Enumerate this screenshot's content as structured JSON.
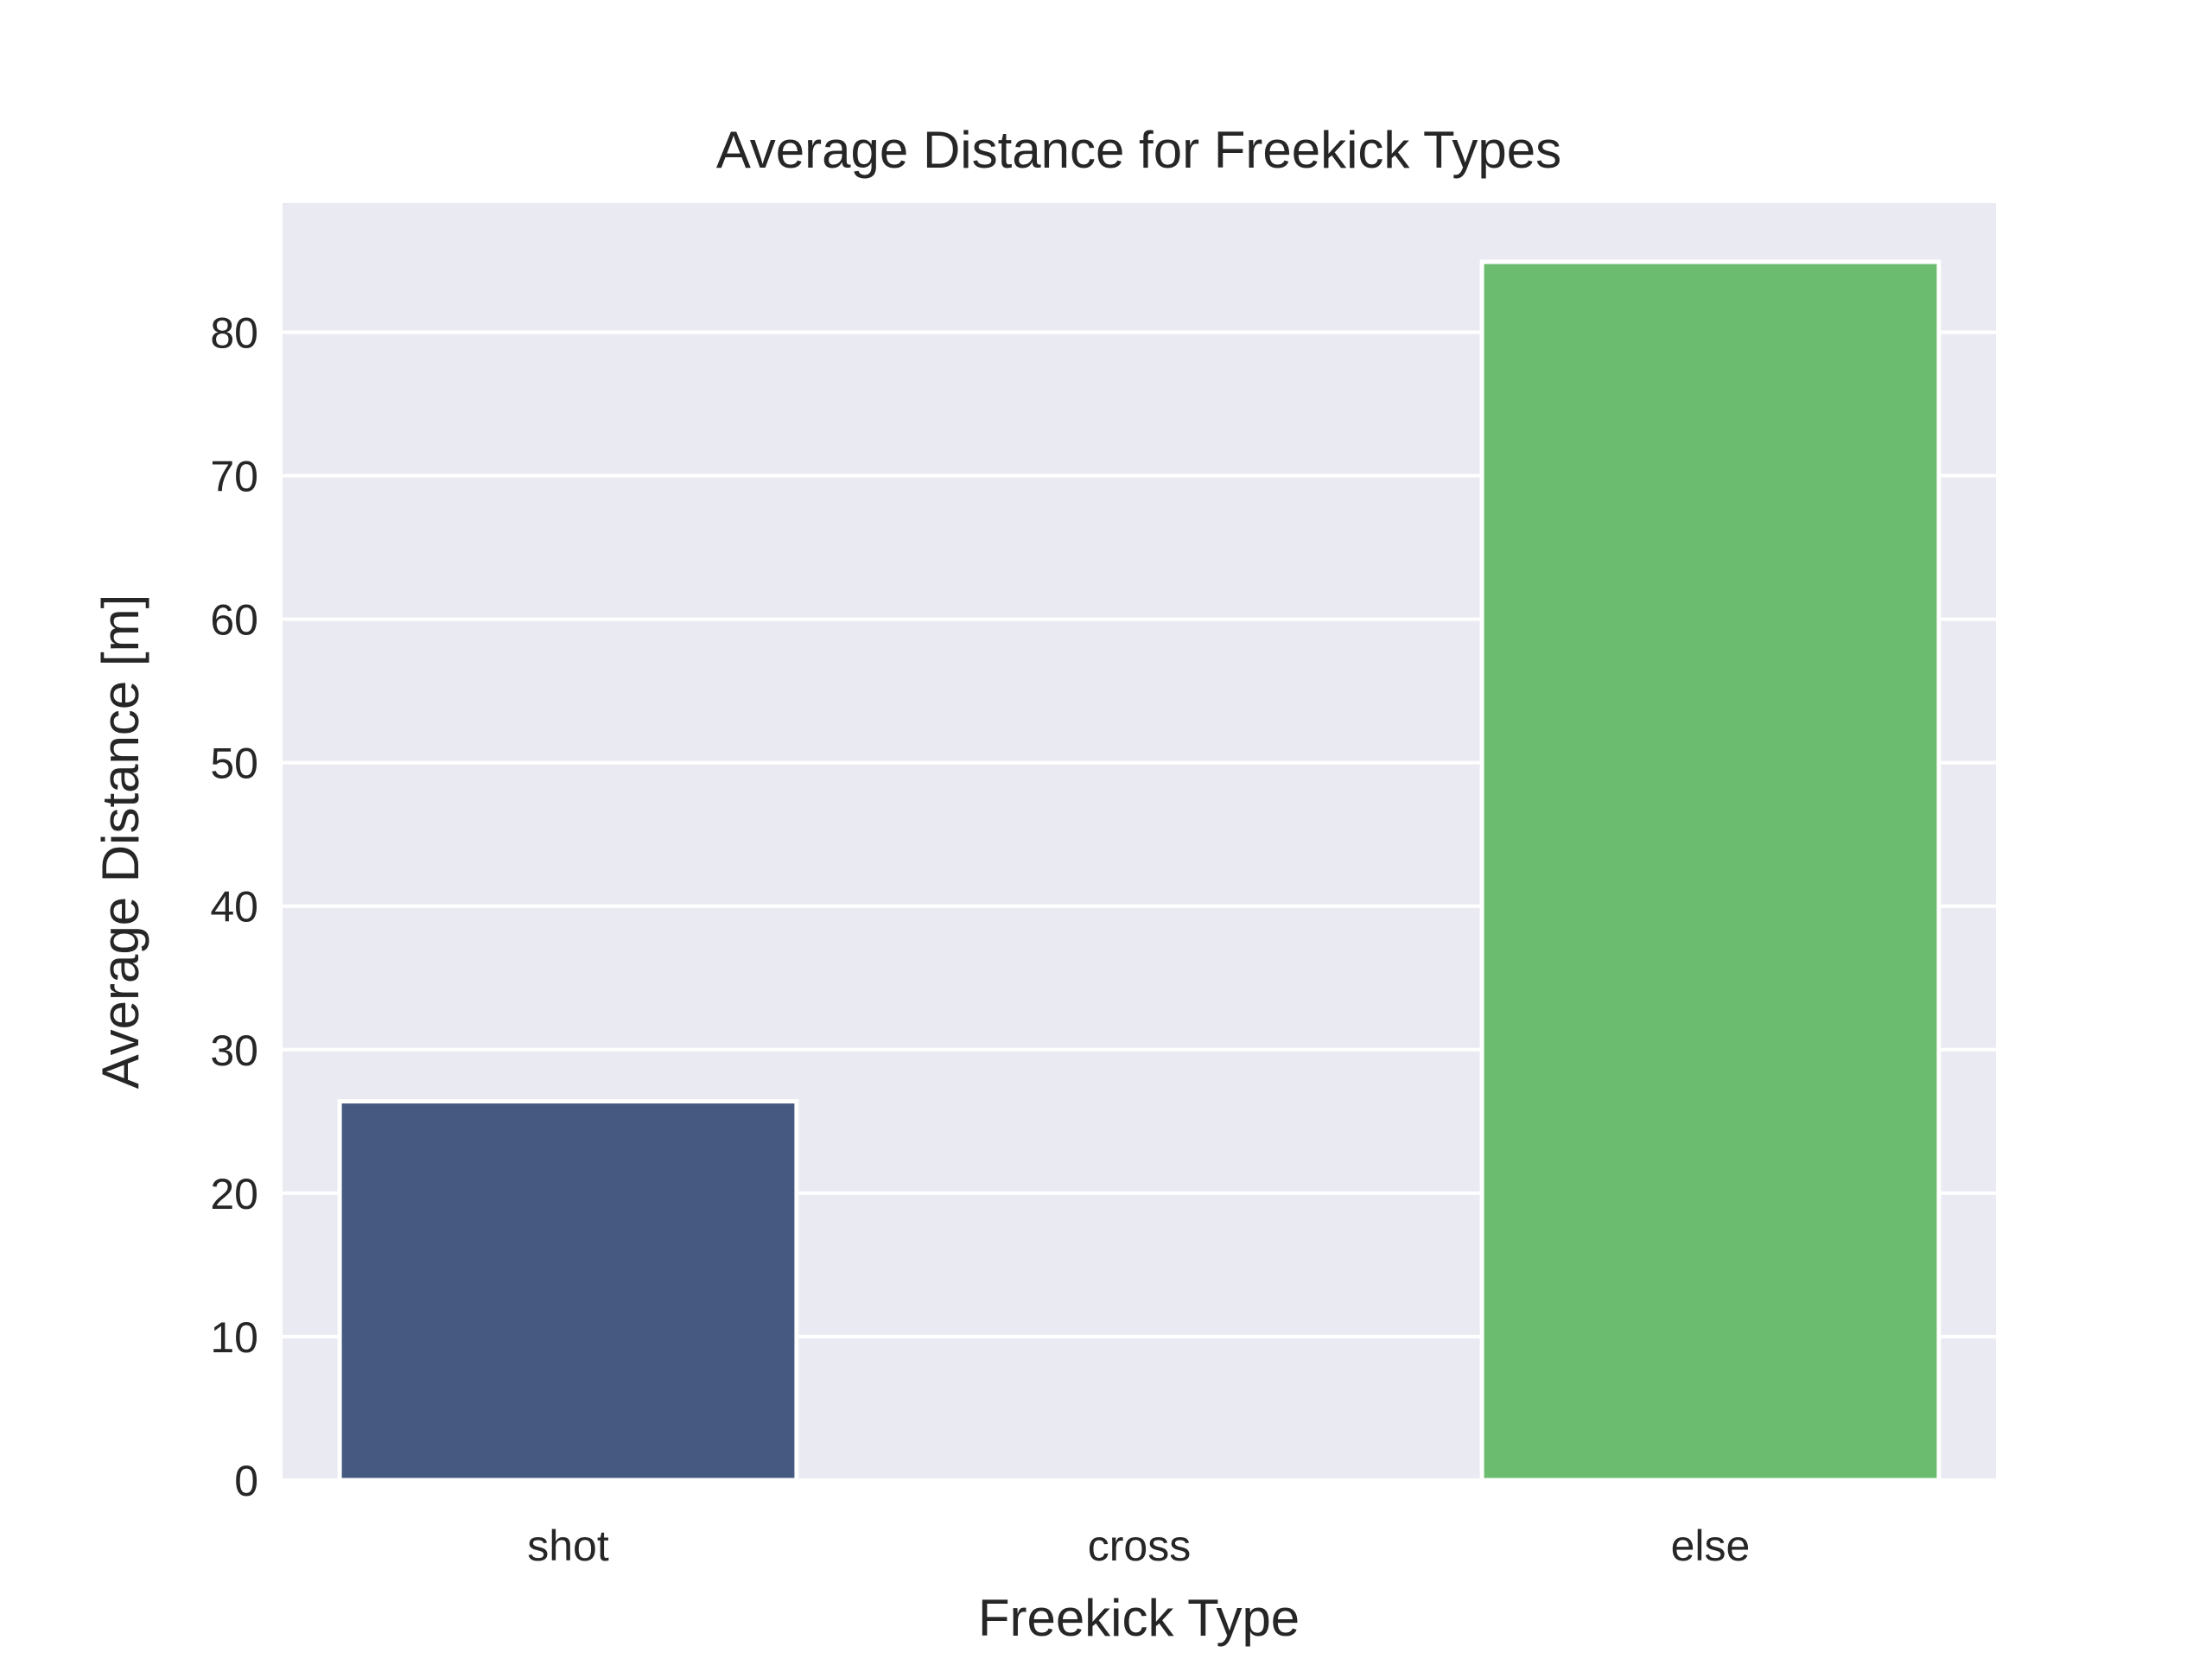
{
  "chart_data": {
    "type": "bar",
    "title": "Average Distance for Freekick Types",
    "xlabel": "Freekick Type",
    "ylabel": "Average Distance [m]",
    "categories": [
      "shot",
      "cross",
      "else"
    ],
    "values": [
      26.4,
      0,
      84.9
    ],
    "colors": [
      "#465a81",
      "#6bbc6e",
      "#6bbc6e"
    ],
    "ylim": [
      0,
      89
    ],
    "yticks": [
      0,
      10,
      20,
      30,
      40,
      50,
      60,
      70,
      80
    ],
    "grid": true,
    "background": "#eaeaf2",
    "grid_color": "#ffffff",
    "text_color": "#262626"
  }
}
